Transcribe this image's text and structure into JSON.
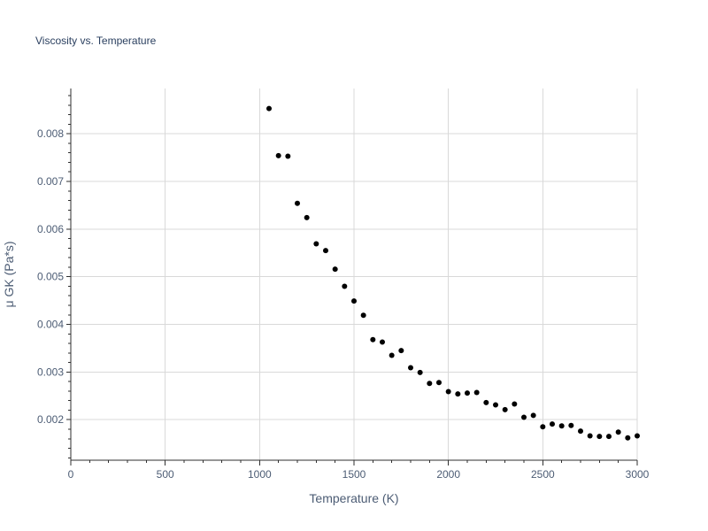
{
  "chart_data": {
    "type": "scatter",
    "title": "Viscosity vs. Temperature",
    "xlabel": "Temperature (K)",
    "ylabel": "μ GK (Pa*s)",
    "xlim": [
      0,
      3000
    ],
    "ylim": [
      0.00115,
      0.00895
    ],
    "x_ticks": [
      0,
      500,
      1000,
      1500,
      2000,
      2500,
      3000
    ],
    "x_tick_labels": [
      "0",
      "500",
      "1000",
      "1500",
      "2000",
      "2500",
      "3000"
    ],
    "y_ticks": [
      0.002,
      0.003,
      0.004,
      0.005,
      0.006,
      0.007,
      0.008
    ],
    "y_tick_labels": [
      "0.002",
      "0.003",
      "0.004",
      "0.005",
      "0.006",
      "0.007",
      "0.008"
    ],
    "grid": true,
    "marker_color": "#000000",
    "grid_color": "#d9d9d9",
    "series": [
      {
        "name": "μ GK",
        "x": [
          1050,
          1100,
          1150,
          1200,
          1250,
          1300,
          1350,
          1400,
          1450,
          1500,
          1550,
          1600,
          1650,
          1700,
          1750,
          1800,
          1850,
          1900,
          1950,
          2000,
          2050,
          2100,
          2150,
          2200,
          2250,
          2300,
          2350,
          2400,
          2450,
          2500,
          2550,
          2600,
          2650,
          2700,
          2750,
          2800,
          2850,
          2900,
          2950,
          3000
        ],
        "y": [
          0.00853,
          0.00754,
          0.00753,
          0.00654,
          0.00624,
          0.00569,
          0.00555,
          0.00516,
          0.0048,
          0.00449,
          0.00419,
          0.00368,
          0.00363,
          0.00335,
          0.00345,
          0.00309,
          0.00299,
          0.00276,
          0.00278,
          0.00259,
          0.00254,
          0.00256,
          0.00257,
          0.00236,
          0.00231,
          0.00221,
          0.00233,
          0.00205,
          0.00209,
          0.00185,
          0.00191,
          0.00187,
          0.00188,
          0.00176,
          0.00166,
          0.00165,
          0.00165,
          0.00174,
          0.00162,
          0.00166
        ]
      }
    ]
  }
}
